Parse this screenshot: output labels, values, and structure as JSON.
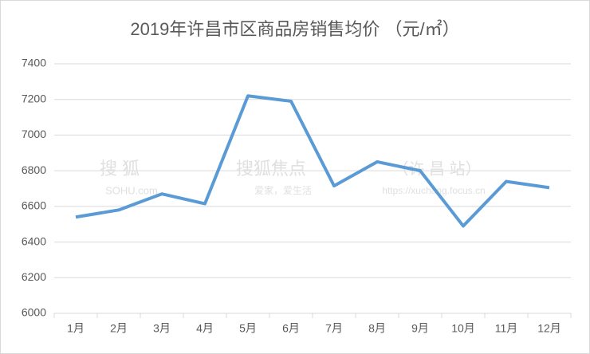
{
  "chart_data": {
    "type": "line",
    "title": "2019年许昌市区商品房销售均价 （元/㎡）",
    "categories": [
      "1月",
      "2月",
      "3月",
      "4月",
      "5月",
      "6月",
      "7月",
      "8月",
      "9月",
      "10月",
      "11月",
      "12月"
    ],
    "series": [
      {
        "name": "销售均价",
        "color": "#5b9bd5",
        "values": [
          6540,
          6580,
          6670,
          6615,
          7220,
          7190,
          6715,
          6850,
          6800,
          6490,
          6740,
          6705
        ]
      }
    ],
    "ylim": [
      6000,
      7400
    ],
    "yticks": [
      6000,
      6200,
      6400,
      6600,
      6800,
      7000,
      7200,
      7400
    ],
    "grid": true,
    "watermark": [
      "搜 狐",
      "SOHU.com",
      "搜狐焦点",
      "爱家，爱生活",
      "（许 昌 站）",
      "https://xuchang.focus.cn"
    ]
  }
}
